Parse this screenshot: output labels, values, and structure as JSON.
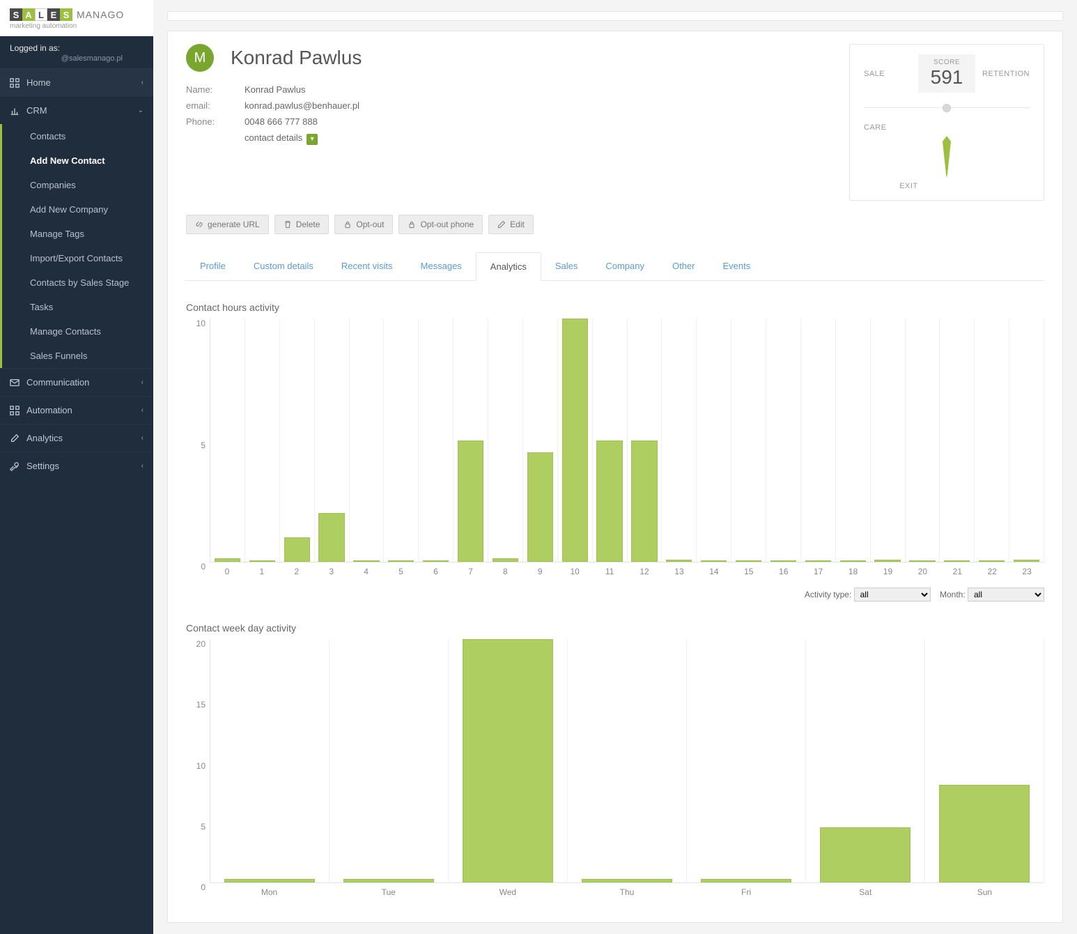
{
  "logo": {
    "brand1": "SALES",
    "brand2": "MANAGO",
    "subtitle": "marketing automation"
  },
  "login": {
    "label": "Logged in as:",
    "user": "@salesmanago.pl"
  },
  "nav": {
    "home": "Home",
    "crm": "CRM",
    "crm_items": [
      "Contacts",
      "Add New Contact",
      "Companies",
      "Add New Company",
      "Manage Tags",
      "Import/Export Contacts",
      "Contacts by Sales Stage",
      "Tasks",
      "Manage Contacts",
      "Sales Funnels"
    ],
    "communication": "Communication",
    "automation": "Automation",
    "analytics": "Analytics",
    "settings": "Settings"
  },
  "contact": {
    "initial": "M",
    "name": "Konrad Pawlus",
    "fields": {
      "name_label": "Name:",
      "name_value": "Konrad Pawlus",
      "email_label": "email:",
      "email_value": "konrad.pawlus@benhauer.pl",
      "phone_label": "Phone:",
      "phone_value": "0048 666 777 888",
      "details_label": "contact details"
    }
  },
  "score": {
    "title": "SCORE",
    "value": "591",
    "sale": "SALE",
    "retention": "RETENTION",
    "care": "CARE",
    "exit": "EXIT",
    "pointer_color": "#9cbf3f"
  },
  "buttons": {
    "generate": "generate URL",
    "delete": "Delete",
    "optout": "Opt-out",
    "optout_phone": "Opt-out phone",
    "edit": "Edit"
  },
  "tabs": [
    "Profile",
    "Custom details",
    "Recent visits",
    "Messages",
    "Analytics",
    "Sales",
    "Company",
    "Other",
    "Events"
  ],
  "tabs_active": 4,
  "filters": {
    "activity_label": "Activity type:",
    "activity_value": "all",
    "month_label": "Month:",
    "month_value": "all"
  },
  "chart1": {
    "title": "Contact hours activity",
    "type": "bar",
    "categories": [
      "0",
      "1",
      "2",
      "3",
      "4",
      "5",
      "6",
      "7",
      "8",
      "9",
      "10",
      "11",
      "12",
      "13",
      "14",
      "15",
      "16",
      "17",
      "18",
      "19",
      "20",
      "21",
      "22",
      "23"
    ],
    "values": [
      0.15,
      0,
      1,
      2,
      0,
      0,
      0,
      5,
      0.15,
      4.5,
      10,
      5,
      5,
      0.1,
      0,
      0,
      0,
      0,
      0,
      0.1,
      0,
      0,
      0,
      0.1
    ],
    "ylim": [
      0,
      10
    ],
    "yticks": [
      0,
      5,
      10
    ],
    "bar_color": "#aece61",
    "bar_border": "#9fc255",
    "grid_color": "#f0f0f0"
  },
  "chart2": {
    "title": "Contact week day activity",
    "type": "bar",
    "categories": [
      "Mon",
      "Tue",
      "Wed",
      "Thu",
      "Fri",
      "Sat",
      "Sun"
    ],
    "values": [
      0.3,
      0.3,
      20,
      0.3,
      0.3,
      4.5,
      8
    ],
    "ylim": [
      0,
      20
    ],
    "yticks": [
      0,
      5,
      10,
      15,
      20
    ],
    "bar_color": "#aece61",
    "bar_border": "#9fc255",
    "grid_color": "#f0f0f0"
  }
}
